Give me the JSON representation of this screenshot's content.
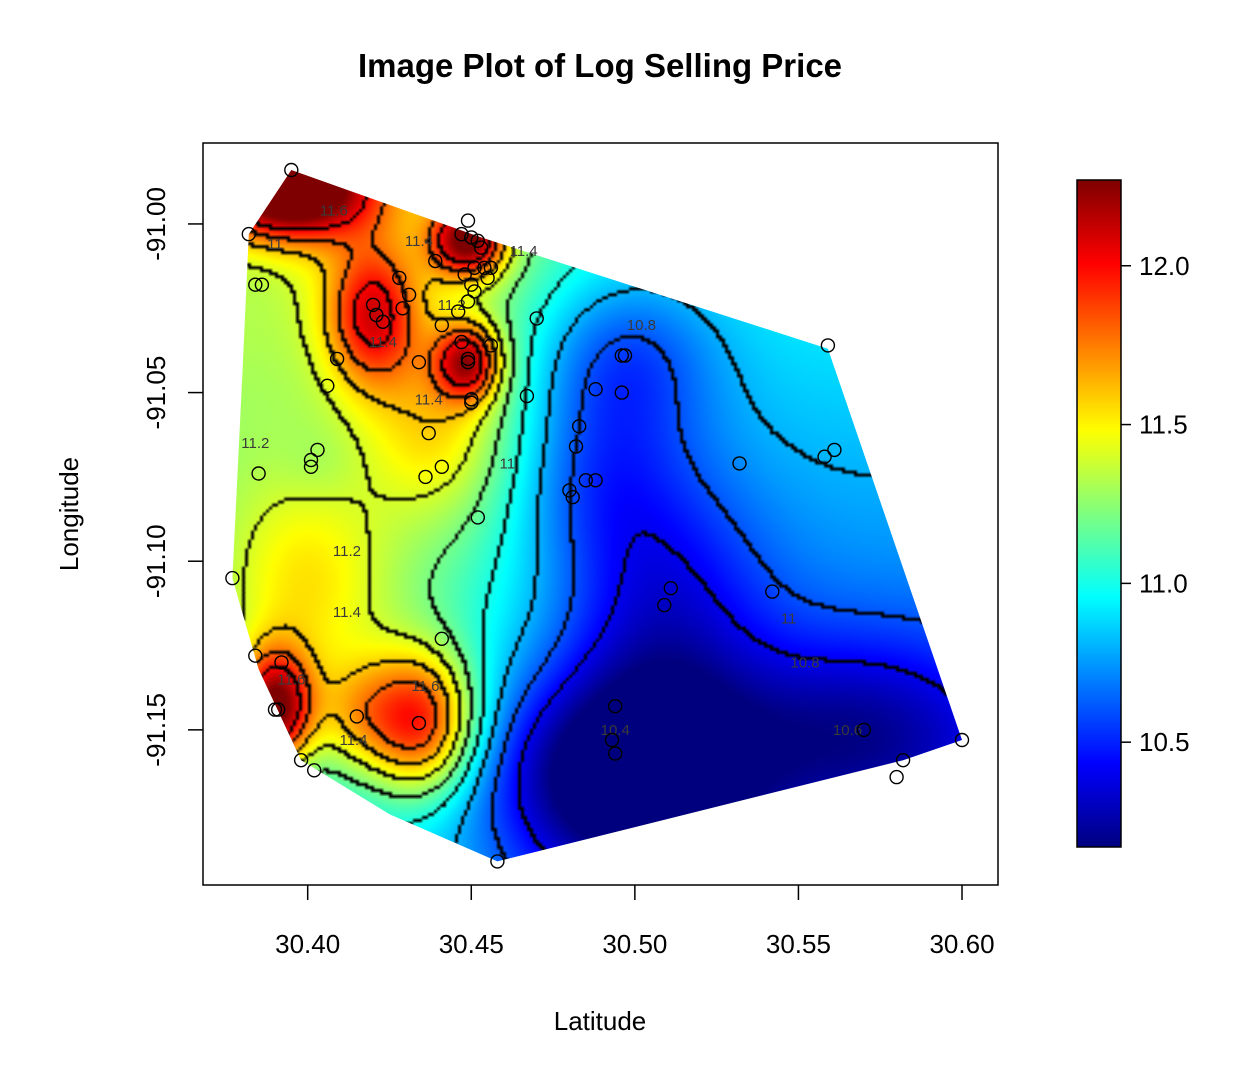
{
  "chart_data": {
    "type": "heatmap",
    "title": "Image Plot of Log Selling Price",
    "xlabel": "Latitude",
    "ylabel": "Longitude",
    "xlim": [
      30.368,
      30.611
    ],
    "ylim": [
      -91.196,
      -90.976
    ],
    "x_ticks": [
      {
        "value": 30.4,
        "label": "30.40"
      },
      {
        "value": 30.45,
        "label": "30.45"
      },
      {
        "value": 30.5,
        "label": "30.50"
      },
      {
        "value": 30.55,
        "label": "30.55"
      },
      {
        "value": 30.6,
        "label": "30.60"
      }
    ],
    "y_ticks": [
      {
        "value": -91.0,
        "label": "-91.00"
      },
      {
        "value": -91.05,
        "label": "-91.05"
      },
      {
        "value": -91.1,
        "label": "-91.10"
      },
      {
        "value": -91.15,
        "label": "-91.15"
      }
    ],
    "colorbar": {
      "zlim": [
        10.17,
        12.27
      ],
      "ticks": [
        {
          "value": 10.5,
          "label": "10.5"
        },
        {
          "value": 11.0,
          "label": "11.0"
        },
        {
          "value": 11.5,
          "label": "11.5"
        },
        {
          "value": 12.0,
          "label": "12.0"
        }
      ],
      "palette": [
        "#00007f",
        "#0000ff",
        "#007fff",
        "#00ffff",
        "#7fff7f",
        "#ffff00",
        "#ff7f00",
        "#ff0000",
        "#7f0000"
      ]
    },
    "hull": [
      [
        30.395,
        -90.984
      ],
      [
        30.453,
        -91.004
      ],
      [
        30.559,
        -91.037
      ],
      [
        30.6,
        -91.153
      ],
      [
        30.582,
        -91.159
      ],
      [
        30.458,
        -91.189
      ],
      [
        30.425,
        -91.175
      ],
      [
        30.398,
        -91.159
      ],
      [
        30.385,
        -91.132
      ],
      [
        30.377,
        -91.105
      ],
      [
        30.38,
        -91.045
      ],
      [
        30.382,
        -91.003
      ]
    ],
    "surface_centers": [
      {
        "x": 30.395,
        "y": -90.99,
        "z": 12.2,
        "sx": 0.018,
        "sy": 0.01
      },
      {
        "x": 30.449,
        "y": -91.005,
        "z": 12.0,
        "sx": 0.008,
        "sy": 0.008
      },
      {
        "x": 30.42,
        "y": -91.027,
        "z": 11.7,
        "sx": 0.01,
        "sy": 0.015
      },
      {
        "x": 30.449,
        "y": -91.041,
        "z": 11.8,
        "sx": 0.007,
        "sy": 0.008
      },
      {
        "x": 30.39,
        "y": -91.144,
        "z": 12.1,
        "sx": 0.008,
        "sy": 0.012
      },
      {
        "x": 30.435,
        "y": -91.148,
        "z": 11.9,
        "sx": 0.012,
        "sy": 0.015
      },
      {
        "x": 30.415,
        "y": -91.146,
        "z": 11.3,
        "sx": 0.01,
        "sy": 0.012
      },
      {
        "x": 30.496,
        "y": -91.04,
        "z": 10.6,
        "sx": 0.02,
        "sy": 0.018
      },
      {
        "x": 30.494,
        "y": -91.163,
        "z": 10.25,
        "sx": 0.03,
        "sy": 0.022
      },
      {
        "x": 30.509,
        "y": -91.113,
        "z": 10.6,
        "sx": 0.022,
        "sy": 0.03
      },
      {
        "x": 30.488,
        "y": -91.076,
        "z": 10.7,
        "sx": 0.018,
        "sy": 0.02
      },
      {
        "x": 30.56,
        "y": -91.068,
        "z": 10.95,
        "sx": 0.018,
        "sy": 0.02
      },
      {
        "x": 30.403,
        "y": -91.071,
        "z": 10.9,
        "sx": 0.008,
        "sy": 0.008
      },
      {
        "x": 30.382,
        "y": -91.01,
        "z": 10.9,
        "sx": 0.008,
        "sy": 0.012
      },
      {
        "x": 30.449,
        "y": -91.015,
        "z": 10.9,
        "sx": 0.005,
        "sy": 0.006
      },
      {
        "x": 30.57,
        "y": -91.15,
        "z": 10.55,
        "sx": 0.03,
        "sy": 0.02
      },
      {
        "x": 30.4,
        "y": -91.11,
        "z": 11.35,
        "sx": 0.02,
        "sy": 0.025
      },
      {
        "x": 30.44,
        "y": -91.06,
        "z": 11.3,
        "sx": 0.015,
        "sy": 0.02
      }
    ],
    "contour_labels": [
      {
        "x": 30.408,
        "y": -90.996,
        "text": "11.6"
      },
      {
        "x": 30.434,
        "y": -91.005,
        "text": "11.4"
      },
      {
        "x": 30.466,
        "y": -91.008,
        "text": "11.4"
      },
      {
        "x": 30.423,
        "y": -91.035,
        "text": "11.4"
      },
      {
        "x": 30.444,
        "y": -91.024,
        "text": "11.2"
      },
      {
        "x": 30.437,
        "y": -91.052,
        "text": "11.4"
      },
      {
        "x": 30.384,
        "y": -91.065,
        "text": "11.2"
      },
      {
        "x": 30.461,
        "y": -91.071,
        "text": "11"
      },
      {
        "x": 30.412,
        "y": -91.097,
        "text": "11.2"
      },
      {
        "x": 30.412,
        "y": -91.115,
        "text": "11.4"
      },
      {
        "x": 30.436,
        "y": -91.137,
        "text": "11.6"
      },
      {
        "x": 30.395,
        "y": -91.135,
        "text": "11.6"
      },
      {
        "x": 30.414,
        "y": -91.153,
        "text": "11.4"
      },
      {
        "x": 30.494,
        "y": -91.15,
        "text": "10.4"
      },
      {
        "x": 30.502,
        "y": -91.03,
        "text": "10.8"
      },
      {
        "x": 30.547,
        "y": -91.117,
        "text": "11"
      },
      {
        "x": 30.552,
        "y": -91.13,
        "text": "10.8"
      },
      {
        "x": 30.565,
        "y": -91.15,
        "text": "10.6"
      },
      {
        "x": 30.39,
        "y": -91.006,
        "text": "11"
      }
    ],
    "points": [
      [
        30.395,
        -90.984
      ],
      [
        30.382,
        -91.003
      ],
      [
        30.384,
        -91.018
      ],
      [
        30.386,
        -91.018
      ],
      [
        30.449,
        -90.999
      ],
      [
        30.447,
        -91.003
      ],
      [
        30.45,
        -91.004
      ],
      [
        30.452,
        -91.005
      ],
      [
        30.453,
        -91.007
      ],
      [
        30.448,
        -91.015
      ],
      [
        30.451,
        -91.013
      ],
      [
        30.454,
        -91.013
      ],
      [
        30.456,
        -91.013
      ],
      [
        30.455,
        -91.016
      ],
      [
        30.45,
        -91.018
      ],
      [
        30.451,
        -91.02
      ],
      [
        30.449,
        -91.023
      ],
      [
        30.439,
        -91.011
      ],
      [
        30.428,
        -91.016
      ],
      [
        30.431,
        -91.021
      ],
      [
        30.429,
        -91.025
      ],
      [
        30.42,
        -91.024
      ],
      [
        30.421,
        -91.027
      ],
      [
        30.423,
        -91.029
      ],
      [
        30.446,
        -91.026
      ],
      [
        30.441,
        -91.03
      ],
      [
        30.447,
        -91.035
      ],
      [
        30.456,
        -91.036
      ],
      [
        30.47,
        -91.028
      ],
      [
        30.449,
        -91.041
      ],
      [
        30.449,
        -91.04
      ],
      [
        30.434,
        -91.041
      ],
      [
        30.409,
        -91.04
      ],
      [
        30.406,
        -91.048
      ],
      [
        30.45,
        -91.052
      ],
      [
        30.45,
        -91.053
      ],
      [
        30.437,
        -91.062
      ],
      [
        30.403,
        -91.067
      ],
      [
        30.401,
        -91.07
      ],
      [
        30.401,
        -91.072
      ],
      [
        30.436,
        -91.075
      ],
      [
        30.441,
        -91.072
      ],
      [
        30.452,
        -91.087
      ],
      [
        30.385,
        -91.074
      ],
      [
        30.377,
        -91.105
      ],
      [
        30.384,
        -91.128
      ],
      [
        30.392,
        -91.13
      ],
      [
        30.39,
        -91.144
      ],
      [
        30.391,
        -91.144
      ],
      [
        30.398,
        -91.159
      ],
      [
        30.402,
        -91.162
      ],
      [
        30.415,
        -91.146
      ],
      [
        30.434,
        -91.148
      ],
      [
        30.441,
        -91.123
      ],
      [
        30.458,
        -91.189
      ],
      [
        30.467,
        -91.051
      ],
      [
        30.488,
        -91.049
      ],
      [
        30.496,
        -91.05
      ],
      [
        30.496,
        -91.039
      ],
      [
        30.497,
        -91.039
      ],
      [
        30.483,
        -91.06
      ],
      [
        30.482,
        -91.066
      ],
      [
        30.48,
        -91.079
      ],
      [
        30.481,
        -91.081
      ],
      [
        30.485,
        -91.076
      ],
      [
        30.488,
        -91.076
      ],
      [
        30.494,
        -91.143
      ],
      [
        30.493,
        -91.153
      ],
      [
        30.494,
        -91.157
      ],
      [
        30.511,
        -91.108
      ],
      [
        30.509,
        -91.113
      ],
      [
        30.532,
        -91.071
      ],
      [
        30.542,
        -91.109
      ],
      [
        30.559,
        -91.036
      ],
      [
        30.558,
        -91.069
      ],
      [
        30.561,
        -91.067
      ],
      [
        30.57,
        -91.15
      ],
      [
        30.582,
        -91.159
      ],
      [
        30.58,
        -91.164
      ],
      [
        30.6,
        -91.153
      ]
    ]
  }
}
